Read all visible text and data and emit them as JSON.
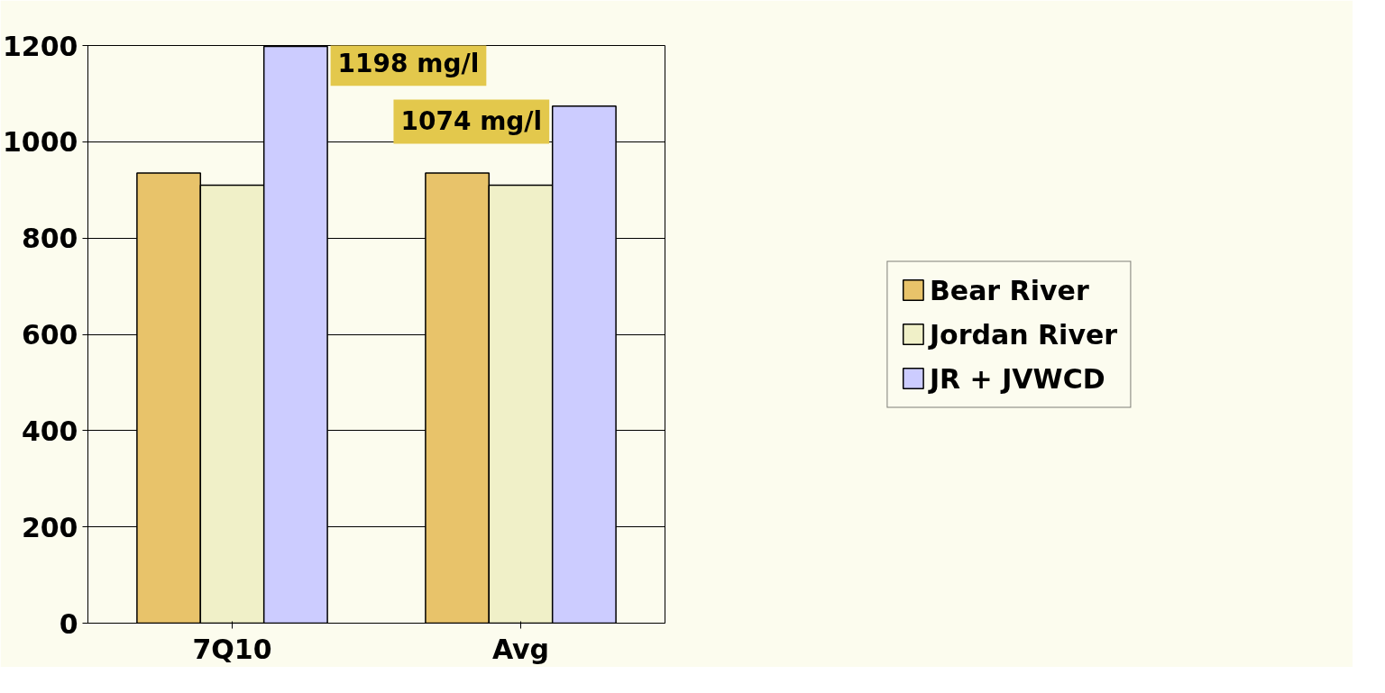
{
  "chart_data": {
    "type": "bar",
    "categories": [
      "7Q10",
      "Avg"
    ],
    "series": [
      {
        "name": "Bear River",
        "color": "#e8c36a",
        "values": [
          935,
          935
        ]
      },
      {
        "name": "Jordan River",
        "color": "#f0f0c8",
        "values": [
          910,
          910
        ]
      },
      {
        "name": "JR + JVWCD",
        "color": "#ccccff",
        "values": [
          1198,
          1074
        ]
      }
    ],
    "ylim": [
      0,
      1200
    ],
    "yticks": [
      0,
      200,
      400,
      600,
      800,
      1000,
      1200
    ],
    "grid": "y",
    "legend": "right",
    "annotations": [
      "1198 mg/l",
      "1074 mg/l"
    ]
  }
}
